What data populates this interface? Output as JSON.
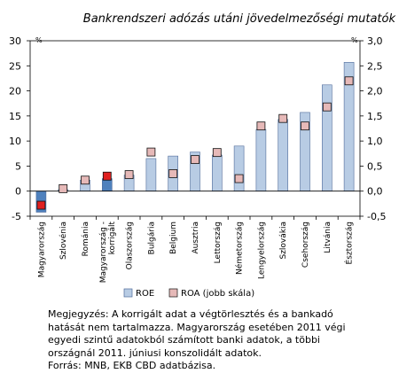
{
  "chart_data": {
    "type": "bar",
    "title": "Bankrendszeri adózás utáni jövedelmezőségi mutatók",
    "left_axis": {
      "unit": "%",
      "min": -5,
      "max": 30,
      "ticks": [
        "-5",
        "0",
        "5",
        "10",
        "15",
        "20",
        "25",
        "30"
      ]
    },
    "right_axis": {
      "unit": "%",
      "min": -0.5,
      "max": 3.0,
      "ticks": [
        "-0,5",
        "0,0",
        "0,5",
        "1,0",
        "1,5",
        "2,0",
        "2,5",
        "3,0"
      ]
    },
    "categories": [
      "Magyarország",
      "Szlovénia",
      "Románia",
      "Magyarország - korrigált",
      "Olaszország",
      "Bulgária",
      "Belgium",
      "Ausztria",
      "Lettország",
      "Németország",
      "Lengyelország",
      "Szlovákia",
      "Csehország",
      "Litvánia",
      "Észtország"
    ],
    "series": [
      {
        "name": "ROE",
        "axis": "left",
        "values": [
          -4.2,
          0.3,
          2.2,
          2.5,
          3.2,
          6.5,
          7.0,
          7.8,
          7.2,
          9.0,
          12.3,
          14.3,
          15.7,
          21.2,
          25.7
        ]
      },
      {
        "name": "ROA (jobb skála)",
        "axis": "right",
        "values": [
          -0.28,
          0.05,
          0.22,
          0.3,
          0.33,
          0.78,
          0.35,
          0.63,
          0.77,
          0.25,
          1.3,
          1.45,
          1.3,
          1.68,
          2.2
        ]
      }
    ],
    "highlighted_categories": [
      "Magyarország",
      "Magyarország - korrigált"
    ],
    "colors": {
      "roe": "#b8cce4",
      "roe_highlight": "#4f81bd",
      "roe_border": "#4f6b9a",
      "roa": "#e6b9b8",
      "roa_highlight": "#e02020",
      "roa_border": "#111111"
    },
    "legend": {
      "position": "bottom",
      "items": [
        "ROE",
        "ROA (jobb skála)"
      ]
    },
    "grid": false
  },
  "note": {
    "lines": [
      "Megjegyzés: A korrigált adat a végtörlesztés és a bankadó",
      "hatását nem tartalmazza. Magyarország esetében 2011 végi",
      "egyedi szintű adatokból számított banki adatok, a többi",
      "országnál 2011. júniusi konszolidált adatok.",
      "Forrás: MNB, EKB CBD adatbázisa."
    ]
  }
}
